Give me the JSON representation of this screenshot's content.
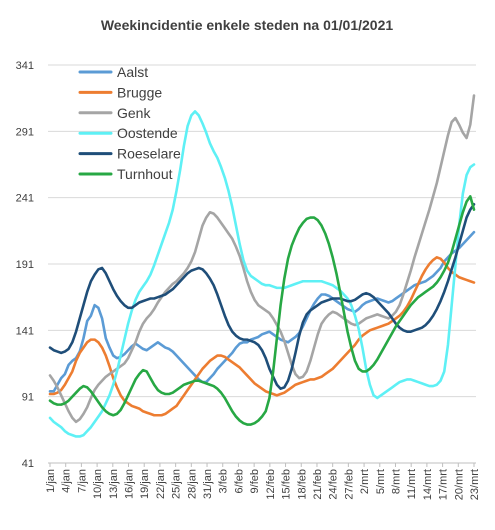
{
  "chart_data": {
    "type": "line",
    "title": "Weekincidentie  enkele steden na 01/01/2021",
    "xlabel": "",
    "ylabel": "",
    "ylim": [
      41,
      341
    ],
    "yticks": [
      41,
      91,
      141,
      191,
      241,
      291,
      341
    ],
    "grid": "horizontal",
    "legend": "top-left",
    "x_tick_labels": [
      "1/jan",
      "4/jan",
      "7/jan",
      "10/jan",
      "13/jan",
      "16/jan",
      "19/jan",
      "22/jan",
      "25/jan",
      "28/jan",
      "31/jan",
      "3/feb",
      "6/feb",
      "9/feb",
      "12/feb",
      "15/feb",
      "18/feb",
      "21/feb",
      "24/feb",
      "27/feb",
      "2/mrt",
      "5/mrt",
      "8/mrt",
      "11/mrt",
      "14/mrt",
      "17/mrt",
      "20/mrt",
      "23/mrt"
    ],
    "series": [
      {
        "name": "Aalst",
        "color": "#5b9bd5",
        "values": [
          95,
          95,
          100,
          105,
          108,
          115,
          118,
          120,
          125,
          135,
          148,
          152,
          160,
          158,
          150,
          135,
          128,
          122,
          120,
          121,
          123,
          126,
          129,
          131,
          129,
          127,
          126,
          128,
          130,
          132,
          130,
          128,
          127,
          125,
          122,
          119,
          116,
          113,
          110,
          107,
          104,
          102,
          102,
          105,
          108,
          112,
          115,
          118,
          121,
          124,
          128,
          131,
          132,
          132,
          134,
          135,
          136,
          138,
          139,
          140,
          138,
          136,
          134,
          133,
          132,
          134,
          136,
          139,
          144,
          150,
          156,
          161,
          165,
          168,
          168,
          167,
          165,
          163,
          161,
          159,
          157,
          156,
          155,
          157,
          160,
          162,
          163,
          164,
          165,
          164,
          163,
          162,
          163,
          165,
          167,
          169,
          171,
          173,
          175,
          176,
          177,
          178,
          180,
          182,
          185,
          188,
          193,
          196,
          199,
          201,
          203,
          206,
          209,
          212,
          215
        ]
      },
      {
        "name": "Brugge",
        "color": "#ed7d31",
        "values": [
          93,
          93,
          94,
          96,
          100,
          105,
          110,
          118,
          124,
          128,
          132,
          134,
          134,
          132,
          128,
          122,
          114,
          105,
          98,
          92,
          88,
          86,
          84,
          83,
          82,
          80,
          79,
          78,
          77,
          77,
          77,
          78,
          80,
          82,
          84,
          88,
          92,
          96,
          100,
          104,
          108,
          112,
          115,
          118,
          120,
          122,
          122,
          121,
          119,
          117,
          115,
          113,
          110,
          107,
          104,
          101,
          99,
          97,
          95,
          94,
          93,
          92,
          93,
          94,
          96,
          98,
          100,
          101,
          102,
          103,
          104,
          104,
          105,
          106,
          108,
          110,
          112,
          115,
          118,
          121,
          124,
          127,
          130,
          134,
          137,
          139,
          141,
          142,
          143,
          144,
          145,
          146,
          148,
          150,
          152,
          155,
          159,
          164,
          170,
          176,
          182,
          187,
          191,
          194,
          196,
          195,
          192,
          188,
          185,
          183,
          181,
          180,
          179,
          178,
          177
        ]
      },
      {
        "name": "Genk",
        "color": "#a5a5a5",
        "values": [
          107,
          103,
          98,
          92,
          86,
          80,
          75,
          72,
          74,
          78,
          83,
          90,
          96,
          100,
          103,
          106,
          108,
          110,
          112,
          114,
          116,
          120,
          126,
          132,
          140,
          146,
          150,
          153,
          157,
          162,
          166,
          170,
          173,
          176,
          178,
          181,
          184,
          188,
          193,
          200,
          210,
          220,
          226,
          230,
          229,
          226,
          222,
          218,
          214,
          210,
          204,
          197,
          188,
          178,
          170,
          164,
          160,
          158,
          156,
          154,
          150,
          145,
          140,
          133,
          124,
          115,
          108,
          105,
          106,
          110,
          118,
          128,
          138,
          146,
          150,
          153,
          155,
          154,
          152,
          150,
          148,
          146,
          145,
          146,
          148,
          150,
          151,
          152,
          153,
          152,
          151,
          150,
          152,
          155,
          160,
          168,
          177,
          186,
          196,
          205,
          214,
          223,
          232,
          242,
          252,
          264,
          276,
          288,
          298,
          301,
          296,
          290,
          286,
          296,
          318
        ]
      },
      {
        "name": "Oostende",
        "color": "#5ef0f5",
        "values": [
          75,
          72,
          70,
          68,
          65,
          63,
          62,
          61,
          61,
          62,
          65,
          68,
          72,
          76,
          80,
          86,
          92,
          100,
          110,
          122,
          134,
          146,
          156,
          164,
          170,
          174,
          178,
          183,
          190,
          198,
          206,
          214,
          222,
          232,
          246,
          262,
          280,
          295,
          303,
          306,
          303,
          297,
          290,
          282,
          276,
          271,
          264,
          256,
          246,
          234,
          220,
          206,
          194,
          186,
          182,
          180,
          178,
          176,
          175,
          175,
          174,
          173,
          173,
          173,
          174,
          175,
          176,
          177,
          178,
          178,
          178,
          178,
          178,
          178,
          177,
          176,
          175,
          173,
          171,
          168,
          165,
          160,
          152,
          142,
          128,
          112,
          100,
          92,
          90,
          92,
          94,
          96,
          98,
          100,
          102,
          103,
          104,
          104,
          103,
          102,
          101,
          100,
          99,
          99,
          100,
          103,
          110,
          130,
          160,
          190,
          220,
          244,
          258,
          264,
          266
        ]
      },
      {
        "name": "Roeselare",
        "color": "#1f4e79",
        "values": [
          128,
          126,
          125,
          124,
          125,
          127,
          132,
          140,
          150,
          160,
          170,
          178,
          183,
          187,
          188,
          184,
          178,
          172,
          167,
          163,
          160,
          158,
          158,
          160,
          162,
          163,
          164,
          165,
          165,
          166,
          167,
          168,
          170,
          172,
          175,
          178,
          181,
          184,
          186,
          187,
          188,
          187,
          184,
          180,
          175,
          168,
          160,
          152,
          145,
          140,
          137,
          135,
          134,
          134,
          133,
          132,
          130,
          126,
          120,
          112,
          106,
          100,
          97,
          98,
          103,
          112,
          124,
          137,
          147,
          153,
          156,
          158,
          160,
          162,
          163,
          164,
          165,
          165,
          165,
          164,
          163,
          163,
          164,
          166,
          168,
          169,
          168,
          166,
          163,
          160,
          157,
          154,
          150,
          146,
          143,
          141,
          140,
          140,
          141,
          142,
          143,
          145,
          148,
          152,
          157,
          163,
          170,
          178,
          187,
          196,
          206,
          216,
          226,
          232,
          236
        ]
      },
      {
        "name": "Turnhout",
        "color": "#27a844",
        "values": [
          88,
          86,
          85,
          85,
          86,
          88,
          91,
          94,
          97,
          99,
          98,
          95,
          91,
          87,
          83,
          80,
          78,
          77,
          78,
          81,
          86,
          92,
          98,
          104,
          108,
          111,
          110,
          105,
          100,
          96,
          94,
          93,
          93,
          94,
          96,
          98,
          100,
          101,
          102,
          103,
          103,
          102,
          101,
          100,
          99,
          97,
          94,
          90,
          85,
          80,
          76,
          73,
          71,
          70,
          70,
          71,
          73,
          76,
          80,
          90,
          110,
          135,
          160,
          180,
          195,
          205,
          212,
          218,
          222,
          225,
          226,
          226,
          224,
          220,
          214,
          206,
          196,
          184,
          170,
          155,
          140,
          128,
          118,
          112,
          110,
          110,
          112,
          115,
          119,
          124,
          129,
          134,
          139,
          144,
          148,
          152,
          156,
          160,
          163,
          166,
          168,
          170,
          172,
          174,
          177,
          181,
          186,
          192,
          200,
          210,
          220,
          230,
          238,
          242,
          232
        ]
      }
    ]
  }
}
